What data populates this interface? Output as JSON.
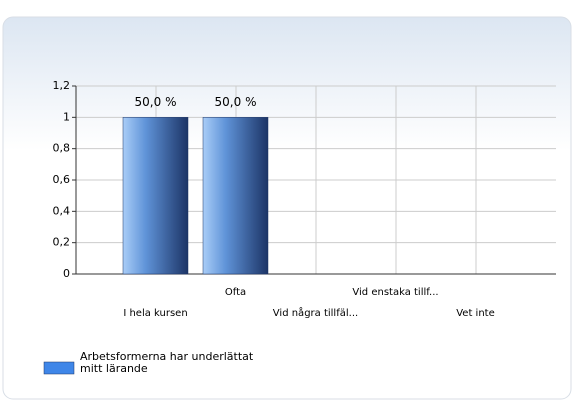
{
  "chart_data": {
    "type": "bar",
    "categories": [
      "I hela kursen",
      "Ofta",
      "Vid några tillfäl...",
      "Vid enstaka tillf...",
      "Vet inte"
    ],
    "series": [
      {
        "name": "Arbetsformerna har underlättat mitt lärande",
        "color": "#3f86e8",
        "values": [
          1,
          1,
          0,
          0,
          0
        ]
      }
    ],
    "percent_labels": [
      "50,0 %",
      "50,0 %",
      null,
      null,
      null
    ],
    "ylim": [
      0,
      1.2
    ],
    "yticks": [
      0,
      {
        "value": 0.2,
        "label": "0,2"
      },
      {
        "value": 0.4,
        "label": "0,4"
      },
      {
        "value": 0.6,
        "label": "0,6"
      },
      {
        "value": 0.8,
        "label": "0,8"
      },
      1,
      {
        "value": 1.2,
        "label": "1,2"
      }
    ],
    "grid": true
  }
}
